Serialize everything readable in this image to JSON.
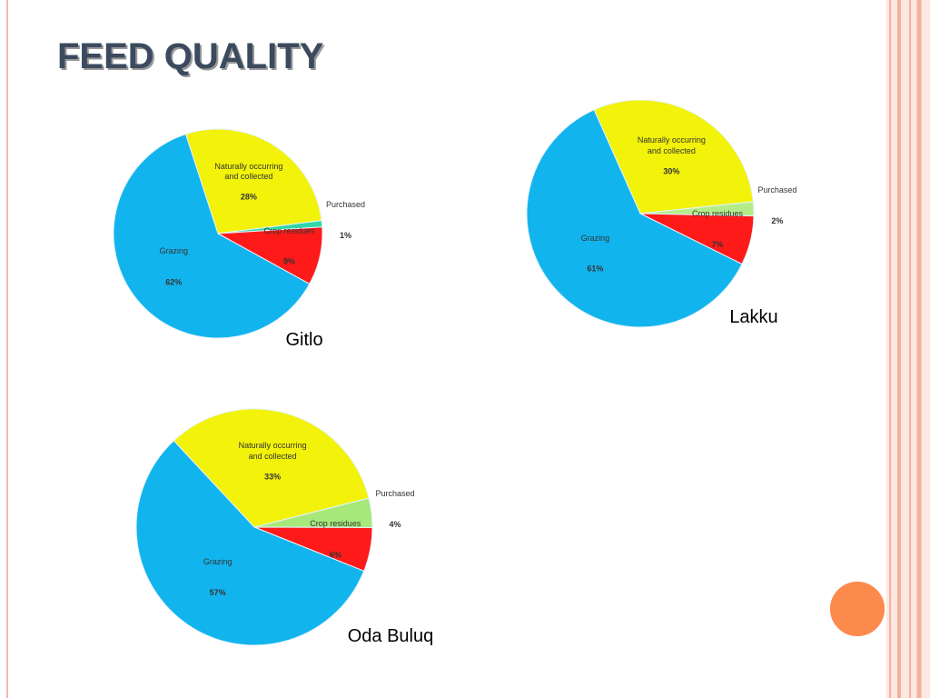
{
  "title": "FEED QUALITY",
  "chart_data": [
    {
      "type": "pie",
      "title": "Gitlo",
      "categories": [
        "Naturally occurring and collected",
        "Purchased",
        "Crop residues",
        "Grazing"
      ],
      "values": [
        28,
        1,
        9,
        62
      ],
      "value_labels": [
        "28%",
        "1%",
        "9%",
        "62%"
      ],
      "colors": [
        "#f2f20a",
        "#2fd6a8",
        "#ff1a1a",
        "#12b4ee"
      ]
    },
    {
      "type": "pie",
      "title": "Lakku",
      "categories": [
        "Naturally occurring and collected",
        "Purchased",
        "Crop residues",
        "Grazing"
      ],
      "values": [
        30,
        2,
        7,
        61
      ],
      "value_labels": [
        "30%",
        "2%",
        "7%",
        "61%"
      ],
      "colors": [
        "#f2f20a",
        "#b5ec8a",
        "#ff1a1a",
        "#12b4ee"
      ]
    },
    {
      "type": "pie",
      "title": "Oda Buluq",
      "categories": [
        "Naturally occurring and collected",
        "Purchased",
        "Crop residues",
        "Grazing"
      ],
      "values": [
        33,
        4,
        6,
        57
      ],
      "value_labels": [
        "33%",
        "4%",
        "6%",
        "57%"
      ],
      "colors": [
        "#f2f20a",
        "#a6e87a",
        "#ff1a1a",
        "#12b4ee"
      ]
    }
  ]
}
